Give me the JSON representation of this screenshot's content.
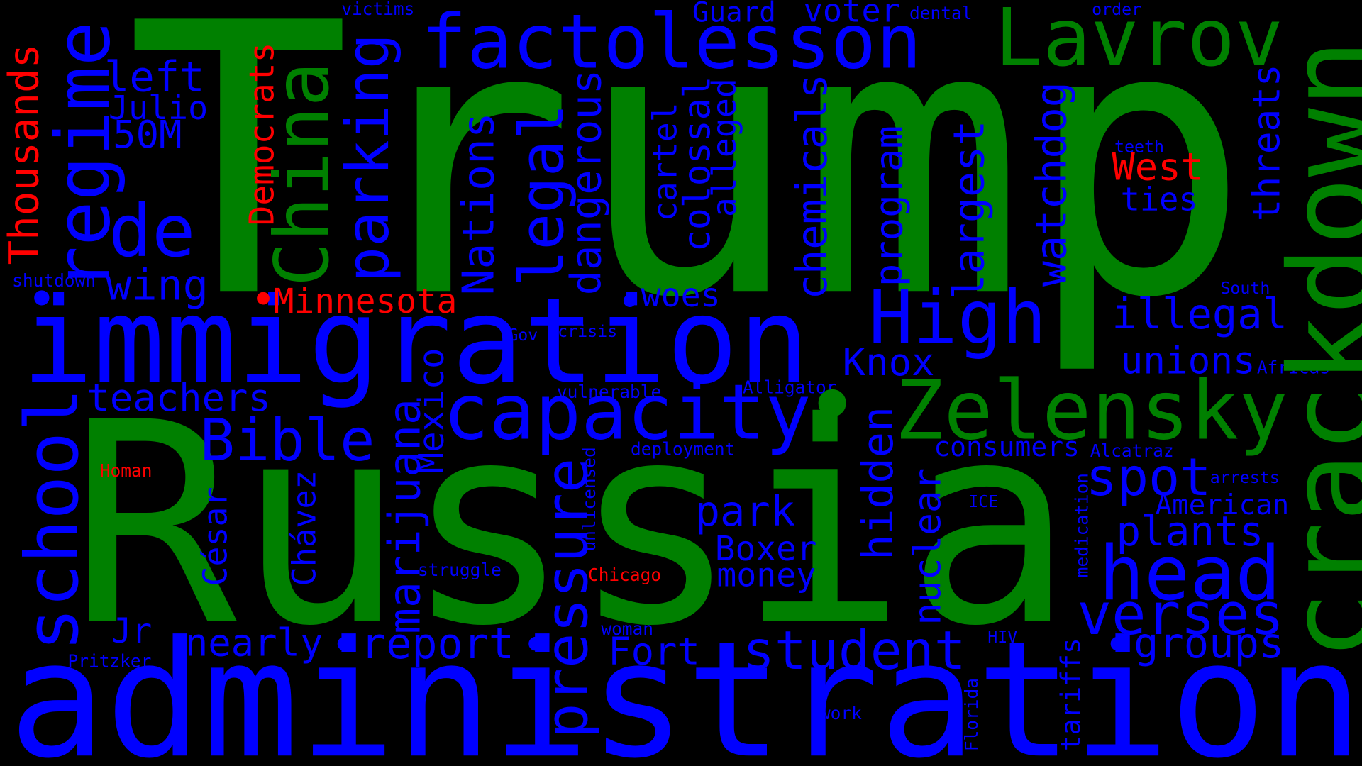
{
  "words": [
    {
      "text": "Trump",
      "color": "green"
    },
    {
      "text": "Russia",
      "color": "green"
    },
    {
      "text": "administration",
      "color": "blue"
    },
    {
      "text": "immigration",
      "color": "blue"
    },
    {
      "text": "capacity",
      "color": "blue"
    },
    {
      "text": "Zelensky",
      "color": "green"
    },
    {
      "text": "factolesson",
      "color": "blue"
    },
    {
      "text": "Lavrov",
      "color": "green"
    },
    {
      "text": "High",
      "color": "blue"
    },
    {
      "text": "head",
      "color": "blue"
    },
    {
      "text": "verses",
      "color": "blue"
    },
    {
      "text": "spot",
      "color": "blue"
    },
    {
      "text": "student",
      "color": "blue"
    },
    {
      "text": "Bible",
      "color": "blue"
    },
    {
      "text": "de",
      "color": "blue"
    },
    {
      "text": "left",
      "color": "blue"
    },
    {
      "text": "Julio",
      "color": "blue"
    },
    {
      "text": "50M",
      "color": "blue"
    },
    {
      "text": "wing",
      "color": "blue"
    },
    {
      "text": "teachers",
      "color": "blue"
    },
    {
      "text": "nearly",
      "color": "blue"
    },
    {
      "text": "report",
      "color": "blue"
    },
    {
      "text": "Jr",
      "color": "blue"
    },
    {
      "text": "Fort",
      "color": "blue"
    },
    {
      "text": "Knox",
      "color": "blue"
    },
    {
      "text": "park",
      "color": "blue"
    },
    {
      "text": "Boxer",
      "color": "blue"
    },
    {
      "text": "money",
      "color": "blue"
    },
    {
      "text": "Minnesota",
      "color": "red"
    },
    {
      "text": "woes",
      "color": "blue"
    },
    {
      "text": "illegal",
      "color": "blue"
    },
    {
      "text": "unions",
      "color": "blue"
    },
    {
      "text": "consumers",
      "color": "blue"
    },
    {
      "text": "plants",
      "color": "blue"
    },
    {
      "text": "American",
      "color": "blue"
    },
    {
      "text": "groups",
      "color": "blue"
    },
    {
      "text": "West",
      "color": "red"
    },
    {
      "text": "ties",
      "color": "blue"
    },
    {
      "text": "teeth",
      "color": "blue"
    },
    {
      "text": "Guard",
      "color": "blue"
    },
    {
      "text": "voter",
      "color": "blue"
    },
    {
      "text": "victims",
      "color": "blue"
    },
    {
      "text": "dental",
      "color": "blue"
    },
    {
      "text": "order",
      "color": "blue"
    },
    {
      "text": "shutdown",
      "color": "blue"
    },
    {
      "text": "South",
      "color": "blue"
    },
    {
      "text": "Gov",
      "color": "blue"
    },
    {
      "text": "crisis",
      "color": "blue"
    },
    {
      "text": "vulnerable",
      "color": "blue"
    },
    {
      "text": "Alligator",
      "color": "blue"
    },
    {
      "text": "Africas",
      "color": "blue"
    },
    {
      "text": "deployment",
      "color": "blue"
    },
    {
      "text": "Alcatraz",
      "color": "blue"
    },
    {
      "text": "arrests",
      "color": "blue"
    },
    {
      "text": "ICE",
      "color": "blue"
    },
    {
      "text": "Homan",
      "color": "red"
    },
    {
      "text": "struggle",
      "color": "blue"
    },
    {
      "text": "Chicago",
      "color": "red"
    },
    {
      "text": "woman",
      "color": "blue"
    },
    {
      "text": "HIV",
      "color": "blue"
    },
    {
      "text": "Pritzker",
      "color": "blue"
    },
    {
      "text": "work",
      "color": "blue"
    },
    {
      "text": "crackdown",
      "color": "green"
    },
    {
      "text": "regime",
      "color": "blue"
    },
    {
      "text": "school",
      "color": "blue"
    },
    {
      "text": "Thousands",
      "color": "red"
    },
    {
      "text": "Democrats",
      "color": "red"
    },
    {
      "text": "China",
      "color": "green"
    },
    {
      "text": "parking",
      "color": "blue"
    },
    {
      "text": "Nations",
      "color": "blue"
    },
    {
      "text": "legal",
      "color": "blue"
    },
    {
      "text": "dangerous",
      "color": "blue"
    },
    {
      "text": "pressure",
      "color": "blue"
    },
    {
      "text": "marijuana",
      "color": "blue"
    },
    {
      "text": "Mexico",
      "color": "blue"
    },
    {
      "text": "César",
      "color": "blue"
    },
    {
      "text": "Chávez",
      "color": "blue"
    },
    {
      "text": "cartel",
      "color": "blue"
    },
    {
      "text": "colossal",
      "color": "blue"
    },
    {
      "text": "alleged",
      "color": "blue"
    },
    {
      "text": "chemicals",
      "color": "blue"
    },
    {
      "text": "program",
      "color": "blue"
    },
    {
      "text": "largest",
      "color": "blue"
    },
    {
      "text": "watchdog",
      "color": "blue"
    },
    {
      "text": "hidden",
      "color": "blue"
    },
    {
      "text": "nuclear",
      "color": "blue"
    },
    {
      "text": "threats",
      "color": "blue"
    },
    {
      "text": "unlicensed",
      "color": "blue"
    },
    {
      "text": "medication",
      "color": "blue"
    },
    {
      "text": "Florida",
      "color": "blue"
    },
    {
      "text": "tariffs",
      "color": "blue"
    },
    {
      "text": "•",
      "color": "blue"
    },
    {
      "text": "•",
      "color": "red"
    },
    {
      "text": "•",
      "color": "blue"
    },
    {
      "text": "•",
      "color": "green"
    },
    {
      "text": "•",
      "color": "blue"
    },
    {
      "text": "•",
      "color": "blue"
    },
    {
      "text": "•",
      "color": "blue"
    }
  ]
}
